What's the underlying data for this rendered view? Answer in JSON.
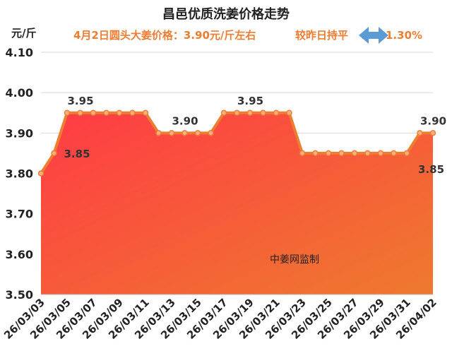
{
  "chart_data": {
    "type": "area",
    "title": "昌邑优质洗姜价格走势",
    "subtitle": "4月2日圆头大姜价格：3.90元/斤左右",
    "change_text": "较昨日持平",
    "change_value": "1.30%",
    "ylabel": "元/斤",
    "ylim": [
      3.5,
      4.1
    ],
    "yticks": [
      3.5,
      3.6,
      3.7,
      3.8,
      3.9,
      4.0,
      4.1
    ],
    "ytick_labels": [
      "3.50",
      "3.60",
      "3.70",
      "3.80",
      "3.90",
      "4.00",
      "4.10"
    ],
    "x": [
      "26/03/03",
      "26/03/04",
      "26/03/05",
      "26/03/06",
      "26/03/07",
      "26/03/08",
      "26/03/09",
      "26/03/10",
      "26/03/11",
      "26/03/12",
      "26/03/13",
      "26/03/14",
      "26/03/15",
      "26/03/16",
      "26/03/17",
      "26/03/18",
      "26/03/19",
      "26/03/20",
      "26/03/21",
      "26/03/22",
      "26/03/23",
      "26/03/24",
      "26/03/25",
      "26/03/26",
      "26/03/27",
      "26/03/28",
      "26/03/29",
      "26/03/30",
      "26/03/31",
      "26/04/01",
      "26/04/02"
    ],
    "xtick_labels": [
      "26/03/03",
      "26/03/05",
      "26/03/07",
      "26/03/09",
      "26/03/11",
      "26/03/13",
      "26/03/15",
      "26/03/17",
      "26/03/19",
      "26/03/21",
      "26/03/23",
      "26/03/25",
      "26/03/27",
      "26/03/29",
      "26/03/31",
      "26/04/02"
    ],
    "values": [
      3.8,
      3.85,
      3.95,
      3.95,
      3.95,
      3.95,
      3.95,
      3.95,
      3.95,
      3.9,
      3.9,
      3.9,
      3.9,
      3.9,
      3.95,
      3.95,
      3.95,
      3.95,
      3.95,
      3.95,
      3.85,
      3.85,
      3.85,
      3.85,
      3.85,
      3.85,
      3.85,
      3.85,
      3.85,
      3.9,
      3.9
    ],
    "data_labels": [
      {
        "index": 1,
        "text": "3.85"
      },
      {
        "index": 3,
        "text": "3.95"
      },
      {
        "index": 11,
        "text": "3.90"
      },
      {
        "index": 16,
        "text": "3.95"
      },
      {
        "index": 28,
        "text": "3.85"
      },
      {
        "index": 30,
        "text": "3.90"
      }
    ],
    "grid": true,
    "annotation": "中姜网监制"
  },
  "colors": {
    "line": "#ed7d31",
    "marker_fill": "#f4b183",
    "fill_top": "#ff3b45",
    "fill_bottom": "#ee7a2e",
    "grid": "#d9d9d9",
    "arrow": "#5b9bd5"
  }
}
